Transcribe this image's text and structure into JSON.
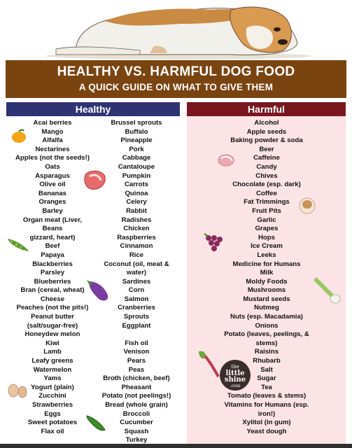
{
  "header": {
    "title": "HEALTHY VS. HARMFUL DOG FOOD",
    "subtitle": "A QUICK GUIDE ON WHAT TO GIVE THEM"
  },
  "healthy": {
    "heading": "Healthy",
    "column1": [
      "Acai berries",
      "Mango",
      "Alfalfa",
      "Nectarines",
      "Apples (not the seeds!)",
      "Oats",
      "Asparagus",
      "Olive oil",
      "Bananas",
      "Oranges",
      "Barley",
      "Organ meat (Liver,",
      "Beans",
      "gizzard, heart)",
      "Beef",
      "Papaya",
      "Blackberries",
      "Parsley",
      "Blueberries",
      "Bran (cereal, wheat)",
      "Cheese",
      "Peaches (not the pits!)",
      "Peanut butter",
      "(salt/sugar-free)",
      "Honeydew melon",
      "Kiwi",
      "Lamb",
      "Leafy greens",
      "Watermelon",
      "Yams",
      "Yogurt (plain)",
      "Zucchini",
      "Strawberries",
      "Eggs",
      "Sweet potatoes",
      "Flax oil"
    ],
    "column2": [
      "Brussel sprouts",
      "Buffalo",
      "Pineapple",
      "Pork",
      "Cabbage",
      "Cantaloupe",
      "Pumpkin",
      "Carrots",
      "Quinoa",
      "Celery",
      "Rabbit",
      "Radishes",
      "Chicken",
      "Raspberries",
      "Cinnamon",
      "Rice",
      "Coconut (oil, meat &",
      "water)",
      "Sardines",
      "Corn",
      "Salmon",
      "Cranberries",
      "Sprouts",
      "Eggplant",
      "",
      "Fish oil",
      "Venison",
      "Pears",
      "Peas",
      "Broth (chicken, beef)",
      "Pheasant",
      "Potato (not peelings!)",
      "Bread (whole grain)",
      "Broccoli",
      "Cucumber",
      "Squash",
      "Turkey"
    ]
  },
  "harmful": {
    "heading": "Harmful",
    "items": [
      "Alcohol",
      "Apple seeds",
      "Baking powder & soda",
      "Beer",
      "Caffeine",
      "Candy",
      "Chives",
      "Chocolate (esp. dark)",
      "Coffee",
      "Fat Trimmings",
      "Fruit Pits",
      "Garlic",
      "Grapes",
      "Hops",
      "Ice Cream",
      "Leeks",
      "Medicine for Humans",
      "Milk",
      "Moldy Foods",
      "Mushrooms",
      "Mustard seeds",
      "Nutmeg",
      "Nuts (esp. Macadamia)",
      "Onions",
      "Potato (leaves, peelings, &",
      "stems)",
      "Raisins",
      "Rhubarb",
      "Salt",
      "Sugar",
      "Tea",
      "Tomato (leaves & stems)",
      "Vitamins for Humans (esp.",
      "iron!)",
      "Xylitol (in gum)",
      "Yeast dough"
    ]
  },
  "logo": {
    "line1": "the",
    "line2": "little",
    "line3": "shine",
    "line4": ".com"
  },
  "colors": {
    "banner": "#7a4411",
    "healthy_header": "#2e3374",
    "harmful_header": "#7a1620",
    "harmful_background": "#fbe3e6"
  }
}
